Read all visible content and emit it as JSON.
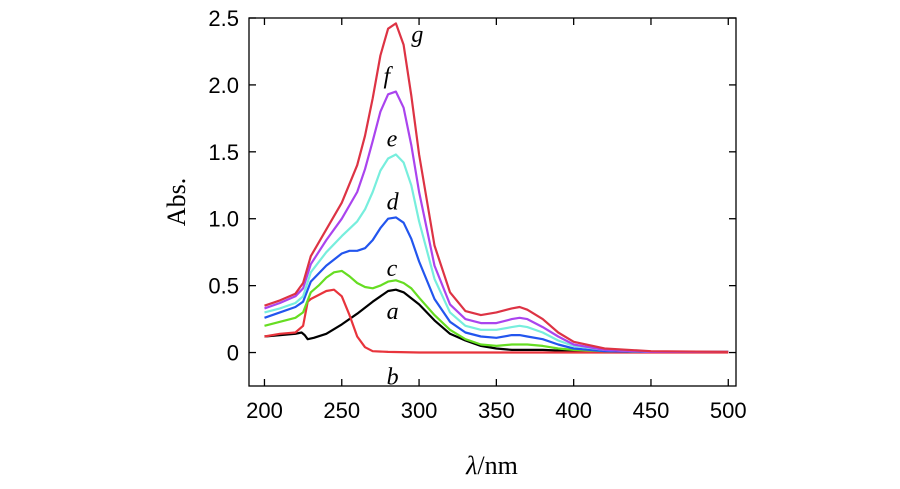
{
  "chart_data": {
    "type": "line",
    "xlabel_symbol": "λ",
    "xlabel_unit": "/nm",
    "ylabel": "Abs.",
    "xlim": [
      190,
      505
    ],
    "ylim": [
      -0.25,
      2.5
    ],
    "x_ticks": [
      200,
      250,
      300,
      350,
      400,
      450,
      500
    ],
    "x_tick_labels": [
      "200",
      "250",
      "300",
      "350",
      "400",
      "450",
      "500"
    ],
    "y_ticks": [
      0,
      0.5,
      1.0,
      1.5,
      2.0,
      2.5
    ],
    "y_tick_labels": [
      "0",
      "0.5",
      "1.0",
      "1.5",
      "2.0",
      "2.5"
    ],
    "grid": false,
    "series": [
      {
        "name": "a",
        "color": "#000000",
        "label_at": [
          279,
          0.31
        ],
        "x": [
          200,
          210,
          220,
          224,
          226,
          228,
          232,
          240,
          250,
          260,
          270,
          280,
          285,
          290,
          300,
          310,
          320,
          330,
          340,
          350,
          360,
          370,
          380,
          400,
          450,
          500
        ],
        "y": [
          0.12,
          0.13,
          0.14,
          0.15,
          0.13,
          0.1,
          0.11,
          0.14,
          0.21,
          0.29,
          0.38,
          0.46,
          0.47,
          0.45,
          0.36,
          0.24,
          0.14,
          0.09,
          0.05,
          0.03,
          0.02,
          0.02,
          0.02,
          0.01,
          0.005,
          0.005
        ]
      },
      {
        "name": "b",
        "color": "#e8343c",
        "label_at": [
          279,
          -0.18
        ],
        "x": [
          200,
          210,
          220,
          225,
          228,
          230,
          235,
          240,
          245,
          250,
          255,
          260,
          265,
          270,
          280,
          300,
          350,
          400,
          450,
          500
        ],
        "y": [
          0.12,
          0.14,
          0.15,
          0.2,
          0.38,
          0.4,
          0.43,
          0.46,
          0.47,
          0.42,
          0.28,
          0.12,
          0.04,
          0.01,
          0.005,
          0.0,
          0.0,
          0.0,
          0.0,
          0.0
        ]
      },
      {
        "name": "c",
        "color": "#66dd22",
        "label_at": [
          279,
          0.63
        ],
        "x": [
          200,
          210,
          220,
          225,
          230,
          235,
          240,
          245,
          250,
          255,
          260,
          265,
          270,
          275,
          280,
          285,
          290,
          295,
          300,
          310,
          320,
          330,
          340,
          350,
          360,
          365,
          370,
          380,
          390,
          400,
          420,
          450,
          500
        ],
        "y": [
          0.2,
          0.23,
          0.26,
          0.3,
          0.45,
          0.5,
          0.56,
          0.6,
          0.61,
          0.57,
          0.52,
          0.49,
          0.48,
          0.5,
          0.53,
          0.54,
          0.52,
          0.48,
          0.41,
          0.28,
          0.17,
          0.1,
          0.06,
          0.05,
          0.06,
          0.06,
          0.06,
          0.05,
          0.03,
          0.02,
          0.01,
          0.005,
          0.005
        ]
      },
      {
        "name": "d",
        "color": "#2255ee",
        "label_at": [
          279,
          1.13
        ],
        "x": [
          200,
          210,
          220,
          225,
          230,
          240,
          250,
          255,
          260,
          265,
          270,
          275,
          280,
          285,
          290,
          295,
          300,
          310,
          320,
          330,
          340,
          350,
          360,
          365,
          370,
          380,
          390,
          400,
          420,
          450,
          500
        ],
        "y": [
          0.26,
          0.3,
          0.34,
          0.38,
          0.53,
          0.65,
          0.74,
          0.76,
          0.76,
          0.78,
          0.84,
          0.93,
          1.0,
          1.01,
          0.97,
          0.85,
          0.68,
          0.4,
          0.23,
          0.15,
          0.12,
          0.11,
          0.13,
          0.13,
          0.12,
          0.1,
          0.06,
          0.03,
          0.01,
          0.005,
          0.005
        ]
      },
      {
        "name": "e",
        "color": "#77eedd",
        "label_at": [
          279,
          1.6
        ],
        "x": [
          200,
          210,
          220,
          225,
          230,
          240,
          250,
          260,
          265,
          270,
          275,
          280,
          285,
          290,
          295,
          300,
          310,
          320,
          330,
          340,
          350,
          360,
          365,
          370,
          380,
          390,
          400,
          420,
          450,
          500
        ],
        "y": [
          0.3,
          0.33,
          0.37,
          0.42,
          0.6,
          0.75,
          0.87,
          0.98,
          1.07,
          1.2,
          1.36,
          1.45,
          1.48,
          1.42,
          1.25,
          0.98,
          0.55,
          0.3,
          0.2,
          0.17,
          0.17,
          0.19,
          0.2,
          0.19,
          0.15,
          0.09,
          0.05,
          0.02,
          0.005,
          0.005
        ]
      },
      {
        "name": "f",
        "color": "#aa44ee",
        "label_at": [
          277,
          2.07
        ],
        "x": [
          200,
          210,
          220,
          225,
          230,
          240,
          250,
          260,
          265,
          270,
          275,
          280,
          285,
          290,
          295,
          300,
          310,
          320,
          330,
          340,
          350,
          360,
          365,
          370,
          380,
          390,
          400,
          420,
          450,
          500
        ],
        "y": [
          0.33,
          0.37,
          0.42,
          0.48,
          0.66,
          0.84,
          1.0,
          1.2,
          1.37,
          1.58,
          1.8,
          1.93,
          1.95,
          1.83,
          1.55,
          1.2,
          0.65,
          0.36,
          0.25,
          0.22,
          0.22,
          0.25,
          0.26,
          0.25,
          0.19,
          0.12,
          0.06,
          0.02,
          0.005,
          0.005
        ]
      },
      {
        "name": "g",
        "color": "#dd3344",
        "label_at": [
          295,
          2.38
        ],
        "x": [
          200,
          210,
          220,
          225,
          230,
          240,
          250,
          260,
          265,
          270,
          275,
          280,
          285,
          290,
          295,
          300,
          310,
          320,
          330,
          340,
          350,
          360,
          365,
          370,
          380,
          390,
          400,
          420,
          450,
          500
        ],
        "y": [
          0.35,
          0.39,
          0.44,
          0.52,
          0.72,
          0.92,
          1.12,
          1.4,
          1.62,
          1.9,
          2.22,
          2.42,
          2.46,
          2.3,
          1.92,
          1.48,
          0.8,
          0.45,
          0.31,
          0.28,
          0.3,
          0.33,
          0.34,
          0.32,
          0.25,
          0.15,
          0.08,
          0.03,
          0.01,
          0.005
        ]
      }
    ]
  }
}
